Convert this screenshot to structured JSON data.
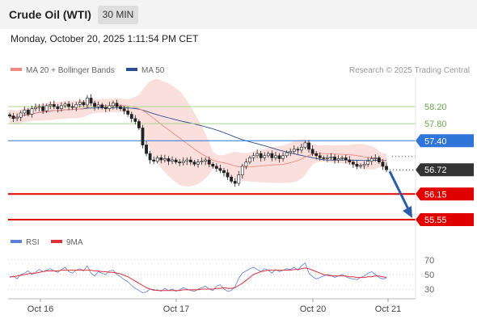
{
  "header": {
    "title": "Crude Oil (WTI)",
    "timeframe": "30 MIN",
    "datetime": "Monday, October 20, 2025 1:11:54 PM CET"
  },
  "legend": {
    "ma20": "MA 20 + Bollinger Bands",
    "ma50": "MA 50",
    "credit": "Research © 2025 Trading Central",
    "rsi": "RSI",
    "ma9": "9MA"
  },
  "colors": {
    "ma20": "#f08a80",
    "ma50": "#2e4f8f",
    "bands": "#f9d4d0",
    "green_level": "#a8d88a",
    "blue_level": "#2f74d8",
    "red_level": "#e00000",
    "current_box": "#333333",
    "rsi": "#5a7fe0",
    "rsi_ma": "#e0303a",
    "arrow": "#2a5caa"
  },
  "chart_data": [
    {
      "type": "candlestick",
      "title": "Crude Oil (WTI) 30 MIN",
      "x_labels": [
        "Oct 16",
        "Oct 17",
        "Oct 20",
        "Oct 21"
      ],
      "ylim": [
        55.4,
        58.6
      ],
      "grid": false,
      "legend": "top-left",
      "levels": [
        {
          "value": 58.2,
          "label": "58.20",
          "style": "resistance-green"
        },
        {
          "value": 57.8,
          "label": "57.80",
          "style": "resistance-green"
        },
        {
          "value": 57.4,
          "label": "57.40",
          "style": "pivot-blue"
        },
        {
          "value": 56.72,
          "label": "56.72",
          "style": "current"
        },
        {
          "value": 56.15,
          "label": "56.15",
          "style": "support-red"
        },
        {
          "value": 55.55,
          "label": "55.55",
          "style": "support-red"
        }
      ],
      "close_series": [
        57.98,
        57.92,
        57.95,
        58.05,
        58.12,
        58.02,
        58.15,
        58.18,
        58.2,
        58.1,
        58.22,
        58.25,
        58.2,
        58.15,
        58.22,
        58.26,
        58.2,
        58.18,
        58.25,
        58.3,
        58.24,
        58.4,
        58.28,
        58.2,
        58.24,
        58.18,
        58.15,
        58.22,
        58.28,
        58.2,
        58.15,
        58.1,
        58.02,
        57.92,
        57.85,
        57.7,
        57.3,
        57.1,
        56.95,
        56.92,
        57.0,
        56.95,
        56.98,
        56.92,
        56.95,
        56.9,
        56.88,
        56.92,
        56.95,
        56.9,
        56.85,
        56.9,
        56.92,
        56.95,
        56.85,
        56.8,
        56.75,
        56.7,
        56.65,
        56.55,
        56.45,
        56.4,
        56.6,
        56.8,
        56.9,
        57.0,
        57.05,
        57.1,
        57.0,
        57.05,
        57.1,
        57.0,
        57.05,
        56.98,
        57.05,
        57.12,
        57.15,
        57.2,
        57.18,
        57.25,
        57.35,
        57.2,
        57.1,
        57.05,
        57.0,
        56.98,
        57.0,
        57.02,
        56.95,
        56.98,
        57.0,
        56.95,
        56.9,
        56.85,
        56.8,
        56.82,
        56.85,
        56.92,
        56.98,
        57.0,
        56.9,
        56.8,
        56.72
      ],
      "current_value": 56.72,
      "projection": {
        "from": 56.72,
        "to": 55.55
      }
    },
    {
      "type": "line",
      "title": "RSI",
      "series": [
        {
          "name": "RSI",
          "values": [
            46,
            48,
            44,
            50,
            52,
            55,
            50,
            53,
            57,
            54,
            56,
            58,
            55,
            53,
            57,
            60,
            54,
            52,
            56,
            58,
            55,
            62,
            52,
            48,
            54,
            52,
            50,
            55,
            56,
            50,
            47,
            43,
            40,
            35,
            31,
            28,
            25,
            26,
            30,
            28,
            29,
            27,
            31,
            28,
            30,
            27,
            29,
            32,
            30,
            28,
            27,
            30,
            32,
            34,
            30,
            28,
            34,
            36,
            30,
            27,
            28,
            33,
            45,
            52,
            55,
            58,
            60,
            57,
            54,
            58,
            56,
            52,
            57,
            54,
            56,
            58,
            57,
            60,
            56,
            62,
            66,
            52,
            47,
            44,
            46,
            48,
            50,
            49,
            46,
            48,
            50,
            47,
            45,
            44,
            43,
            46,
            48,
            52,
            54,
            50,
            46,
            44,
            45
          ]
        },
        {
          "name": "9MA",
          "values": [
            47,
            47,
            48,
            49,
            50,
            51,
            52,
            52,
            53,
            54,
            55,
            55,
            55,
            55,
            56,
            56,
            56,
            56,
            56,
            56,
            56,
            56,
            56,
            55,
            55,
            54,
            54,
            53,
            53,
            52,
            51,
            49,
            47,
            44,
            41,
            38,
            35,
            32,
            30,
            29,
            28,
            28,
            28,
            28,
            28,
            28,
            28,
            29,
            29,
            29,
            29,
            29,
            30,
            30,
            30,
            30,
            31,
            31,
            32,
            31,
            31,
            32,
            35,
            38,
            42,
            46,
            50,
            52,
            54,
            55,
            56,
            56,
            56,
            56,
            56,
            56,
            56,
            57,
            57,
            58,
            59,
            58,
            56,
            54,
            52,
            50,
            49,
            48,
            48,
            48,
            48,
            48,
            47,
            47,
            46,
            46,
            46,
            47,
            47,
            48,
            48,
            47,
            46
          ]
        }
      ],
      "y_ticks": [
        70,
        50,
        30
      ],
      "ylim": [
        20,
        80
      ],
      "legend": "top-left"
    }
  ]
}
